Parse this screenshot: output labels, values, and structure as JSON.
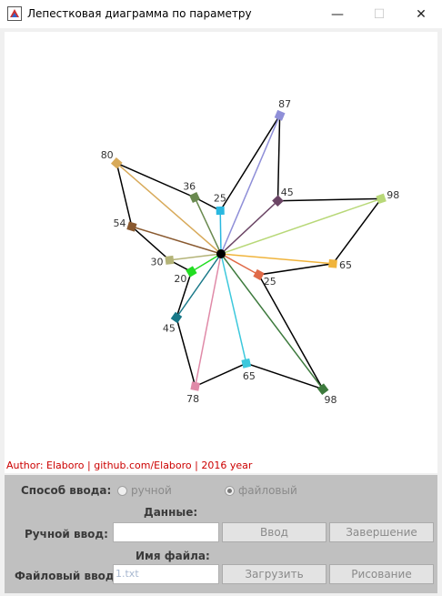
{
  "window": {
    "title": "Лепестковая диаграмма по параметру"
  },
  "credit": "Author: Elaboro | github.com/Elaboro | 2016 year",
  "chart_data": {
    "type": "radar",
    "center": "hub",
    "values": [
      {
        "value": 87,
        "color": "#8f8fd8"
      },
      {
        "value": 45,
        "color": "#6b4565"
      },
      {
        "value": 98,
        "color": "#b8d878"
      },
      {
        "value": 65,
        "color": "#f0b43c"
      },
      {
        "value": 25,
        "color": "#e06a48"
      },
      {
        "value": 98,
        "color": "#3d7a3d"
      },
      {
        "value": 65,
        "color": "#3cc8dc"
      },
      {
        "value": 78,
        "color": "#e08aa8"
      },
      {
        "value": 45,
        "color": "#187888"
      },
      {
        "value": 20,
        "color": "#22dd22"
      },
      {
        "value": 30,
        "color": "#b4b478"
      },
      {
        "value": 54,
        "color": "#8a5a30"
      },
      {
        "value": 80,
        "color": "#d8aa5a"
      },
      {
        "value": 36,
        "color": "#6a8a50"
      },
      {
        "value": 25,
        "color": "#2ab8e0"
      }
    ]
  },
  "panel": {
    "input_mode_label": "Способ ввода:",
    "radio_manual": "ручной",
    "radio_file": "файловый",
    "data_label": "Данные:",
    "manual_input_label": "Ручной ввод:",
    "manual_input_value": "",
    "btn_input": "Ввод",
    "btn_finish": "Завершение",
    "filename_label": "Имя файла:",
    "file_input_label": "Файловый ввод:",
    "file_input_value": "1.txt",
    "btn_load": "Загрузить",
    "btn_draw": "Рисование"
  }
}
